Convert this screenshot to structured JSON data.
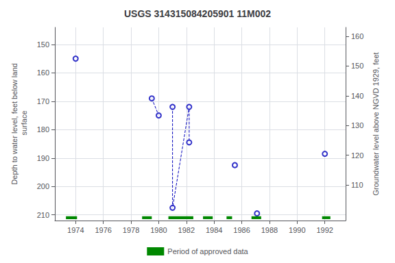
{
  "chart_data": {
    "type": "line",
    "title": "USGS 314315084205901 11M002",
    "ylabel": "Depth to water level, feet below land\n surface",
    "y2label": "Groundwater level above NGVD 1929, feet",
    "xlim": [
      1972.5,
      1993.5
    ],
    "xticks": [
      1974,
      1976,
      1978,
      1980,
      1982,
      1984,
      1986,
      1988,
      1990,
      1992
    ],
    "ylim": [
      212,
      144
    ],
    "yticks": [
      150,
      160,
      170,
      180,
      190,
      200,
      210
    ],
    "y2lim": [
      98,
      163
    ],
    "y2ticks": [
      160,
      150,
      140,
      130,
      120,
      110
    ],
    "grid": true,
    "legend": "bottom",
    "series": [
      {
        "type": "line",
        "line_style": "dashed",
        "color": "#0000bb",
        "x": [
          1979.5,
          1980.0
        ],
        "values": [
          169.0,
          175.0
        ]
      },
      {
        "type": "line",
        "line_style": "dashed",
        "color": "#0000bb",
        "x": [
          1981.0,
          1981.0,
          1982.2,
          1982.2
        ],
        "values": [
          172.0,
          207.5,
          172.0,
          184.5
        ]
      },
      {
        "type": "scatter",
        "marker": "open circle",
        "color": "#0000bb",
        "x": [
          1974.0,
          1979.5,
          1980.0,
          1981.0,
          1981.0,
          1982.2,
          1982.2,
          1985.5,
          1987.1,
          1992.0
        ],
        "values": [
          155.0,
          169.0,
          175.0,
          172.0,
          207.5,
          172.0,
          184.5,
          192.5,
          209.5,
          188.5
        ]
      },
      {
        "type": "bar",
        "orientation": "horizontal",
        "name": "Period of approved data",
        "color": "#008800",
        "x_start": [
          1973.3,
          1978.8,
          1980.7,
          1983.2,
          1984.9,
          1986.7,
          1991.8
        ],
        "x_end": [
          1974.1,
          1979.5,
          1982.5,
          1983.9,
          1985.3,
          1987.4,
          1992.4
        ],
        "y": 211.0,
        "height": 1.0
      }
    ]
  }
}
